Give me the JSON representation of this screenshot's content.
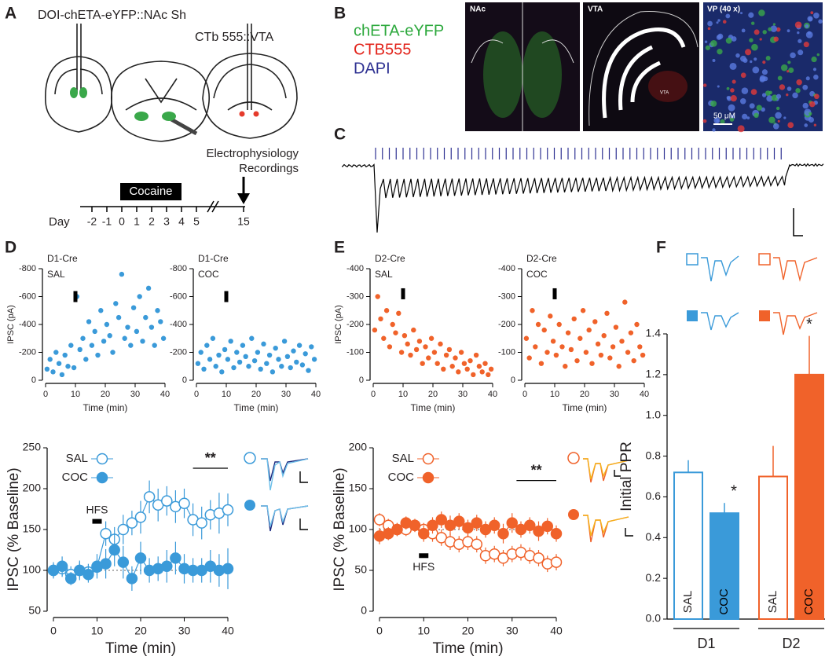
{
  "panel_labels": [
    "A",
    "B",
    "C",
    "D",
    "E",
    "F"
  ],
  "panel_a": {
    "injection_1": "DOI-chETA-eYFP::NAc Sh",
    "injection_2": "CTb 555::VTA",
    "recording": [
      "Electrophysiology",
      "Recordings"
    ],
    "treatment": "Cocaine",
    "day_label": "Day",
    "days": [
      -2,
      -1,
      0,
      1,
      2,
      3,
      4,
      5,
      15
    ]
  },
  "panel_b": {
    "legend": [
      "chETA-eYFP",
      "CTB555",
      "DAPI"
    ],
    "images": [
      "NAc",
      "VTA",
      "VP (40 x)"
    ],
    "scale_bar": "50 μM",
    "region_label": "VTA"
  },
  "chart_data": [
    {
      "type": "scatter",
      "title": "D1-Cre",
      "subtitle": "SAL",
      "ylabel": "IPSC (pA)",
      "xlabel": "Time (min)",
      "color": "#3a9ad9",
      "xlim": [
        0,
        40
      ],
      "xticks": [
        0,
        10,
        20,
        30,
        40
      ],
      "ylim": [
        0,
        -800
      ],
      "yticks": [
        0,
        -200,
        -400,
        -600,
        -800
      ],
      "stim_marker": {
        "x": 10,
        "y": -600
      },
      "x": [
        0.5,
        1.5,
        2.5,
        3.5,
        4.5,
        5.5,
        6.5,
        7.5,
        8.5,
        9.5,
        10.5,
        11.5,
        12.5,
        13.5,
        14.5,
        15.5,
        16.5,
        17.5,
        18.5,
        19.5,
        20.5,
        21.5,
        22.5,
        23.5,
        24.5,
        25.5,
        26.5,
        27.5,
        28.5,
        29.5,
        30.5,
        31.5,
        32.5,
        33.5,
        34.5,
        35.5,
        36.5,
        37.5,
        38.5,
        39.5
      ],
      "values": [
        -80,
        -150,
        -60,
        -200,
        -120,
        -40,
        -180,
        -100,
        -250,
        -90,
        -600,
        -220,
        -300,
        -150,
        -420,
        -250,
        -350,
        -180,
        -500,
        -280,
        -400,
        -320,
        -200,
        -550,
        -450,
        -760,
        -300,
        -380,
        -250,
        -520,
        -350,
        -600,
        -280,
        -450,
        -660,
        -380,
        -250,
        -500,
        -420,
        -300
      ]
    },
    {
      "type": "scatter",
      "title": "D1-Cre",
      "subtitle": "COC",
      "xlabel": "Time (min)",
      "color": "#3a9ad9",
      "xlim": [
        0,
        40
      ],
      "xticks": [
        0,
        10,
        20,
        30,
        40
      ],
      "ylim": [
        0,
        -800
      ],
      "yticks": [
        0,
        -200,
        -400,
        -600,
        -800
      ],
      "stim_marker": {
        "x": 10,
        "y": -600
      },
      "x": [
        0.5,
        1.5,
        2.5,
        3.5,
        4.5,
        5.5,
        6.5,
        7.5,
        8.5,
        9.5,
        10.5,
        11.5,
        12.5,
        13.5,
        14.5,
        15.5,
        16.5,
        17.5,
        18.5,
        19.5,
        20.5,
        21.5,
        22.5,
        23.5,
        24.5,
        25.5,
        26.5,
        27.5,
        28.5,
        29.5,
        30.5,
        31.5,
        32.5,
        33.5,
        34.5,
        35.5,
        36.5,
        37.5,
        38.5,
        39.5
      ],
      "values": [
        -120,
        -200,
        -80,
        -250,
        -150,
        -300,
        -100,
        -180,
        -60,
        -220,
        -150,
        -280,
        -90,
        -200,
        -130,
        -250,
        -170,
        -100,
        -300,
        -140,
        -200,
        -80,
        -260,
        -120,
        -180,
        -60,
        -230,
        -150,
        -100,
        -280,
        -170,
        -90,
        -210,
        -130,
        -250,
        -110,
        -190,
        -70,
        -240,
        -150
      ]
    },
    {
      "type": "line",
      "ylabel": "IPSC (% Baseline)",
      "xlabel": "Time (min)",
      "xlim": [
        0,
        40
      ],
      "xticks": [
        0,
        10,
        20,
        30,
        40
      ],
      "ylim": [
        50,
        250
      ],
      "yticks": [
        50,
        100,
        150,
        200,
        250
      ],
      "baseline": 100,
      "x": [
        0,
        2,
        4,
        6,
        8,
        10,
        12,
        14,
        16,
        18,
        20,
        22,
        24,
        26,
        28,
        30,
        32,
        34,
        36,
        38,
        40
      ],
      "series": [
        {
          "name": "SAL",
          "color": "#3a9ad9",
          "filled": false,
          "values": [
            100,
            102,
            95,
            100,
            98,
            104,
            145,
            138,
            150,
            158,
            165,
            190,
            180,
            185,
            178,
            182,
            162,
            158,
            168,
            170,
            174
          ],
          "errors": [
            8,
            10,
            10,
            12,
            10,
            10,
            15,
            15,
            18,
            15,
            20,
            20,
            20,
            18,
            20,
            18,
            20,
            20,
            18,
            25,
            20
          ]
        },
        {
          "name": "COC",
          "color": "#3a9ad9",
          "filled": true,
          "values": [
            100,
            105,
            90,
            100,
            95,
            105,
            108,
            125,
            110,
            90,
            115,
            100,
            102,
            105,
            115,
            102,
            100,
            100,
            105,
            100,
            102
          ],
          "errors": [
            10,
            12,
            8,
            10,
            10,
            15,
            18,
            20,
            20,
            15,
            20,
            15,
            15,
            20,
            20,
            18,
            15,
            15,
            20,
            20,
            25
          ]
        }
      ],
      "hfs": {
        "label": "HFS",
        "x": 10,
        "y": 160,
        "label_side": "above"
      },
      "significance": {
        "label": "**",
        "x": [
          32,
          40
        ],
        "y": 225
      }
    },
    {
      "type": "scatter",
      "title": "D2-Cre",
      "subtitle": "SAL",
      "ylabel": "IPSC (pA)",
      "xlabel": "Time (min)",
      "color": "#f0622a",
      "xlim": [
        0,
        40
      ],
      "xticks": [
        0,
        10,
        20,
        30,
        40
      ],
      "ylim": [
        0,
        -400
      ],
      "yticks": [
        0,
        -100,
        -200,
        -300,
        -400
      ],
      "stim_marker": {
        "x": 10,
        "y": -310
      },
      "x": [
        0.5,
        1.5,
        2.5,
        3.5,
        4.5,
        5.5,
        6.5,
        7.5,
        8.5,
        9.5,
        10.5,
        11.5,
        12.5,
        13.5,
        14.5,
        15.5,
        16.5,
        17.5,
        18.5,
        19.5,
        20.5,
        21.5,
        22.5,
        23.5,
        24.5,
        25.5,
        26.5,
        27.5,
        28.5,
        29.5,
        30.5,
        31.5,
        32.5,
        33.5,
        34.5,
        35.5,
        36.5,
        37.5,
        38.5,
        39.5
      ],
      "values": [
        -180,
        -300,
        -220,
        -150,
        -250,
        -120,
        -200,
        -170,
        -240,
        -100,
        -160,
        -130,
        -90,
        -180,
        -110,
        -140,
        -60,
        -120,
        -80,
        -150,
        -100,
        -60,
        -130,
        -40,
        -90,
        -110,
        -50,
        -80,
        -30,
        -100,
        -60,
        -40,
        -70,
        -20,
        -90,
        -50,
        -30,
        -60,
        -20,
        -40
      ]
    },
    {
      "type": "scatter",
      "title": "D2-Cre",
      "subtitle": "COC",
      "xlabel": "Time (min)",
      "color": "#f0622a",
      "xlim": [
        0,
        40
      ],
      "xticks": [
        0,
        10,
        20,
        30,
        40
      ],
      "ylim": [
        0,
        -400
      ],
      "yticks": [
        0,
        -100,
        -200,
        -300,
        -400
      ],
      "stim_marker": {
        "x": 10,
        "y": -310
      },
      "x": [
        0.5,
        1.5,
        2.5,
        3.5,
        4.5,
        5.5,
        6.5,
        7.5,
        8.5,
        9.5,
        10.5,
        11.5,
        12.5,
        13.5,
        14.5,
        15.5,
        16.5,
        17.5,
        18.5,
        19.5,
        20.5,
        21.5,
        22.5,
        23.5,
        24.5,
        25.5,
        26.5,
        27.5,
        28.5,
        29.5,
        30.5,
        31.5,
        32.5,
        33.5,
        34.5,
        35.5,
        36.5,
        37.5,
        38.5,
        39.5
      ],
      "values": [
        -150,
        -80,
        -250,
        -120,
        -200,
        -60,
        -180,
        -100,
        -230,
        -140,
        -90,
        -200,
        -120,
        -50,
        -170,
        -110,
        -220,
        -70,
        -150,
        -250,
        -100,
        -180,
        -60,
        -210,
        -130,
        -90,
        -160,
        -240,
        -80,
        -120,
        -190,
        -50,
        -140,
        -280,
        -100,
        -170,
        -70,
        -200,
        -120,
        -90
      ]
    },
    {
      "type": "line",
      "ylabel": "IPSC (% Baseline)",
      "xlabel": "Time (min)",
      "xlim": [
        0,
        40
      ],
      "xticks": [
        0,
        10,
        20,
        30,
        40
      ],
      "ylim": [
        0,
        200
      ],
      "yticks": [
        0,
        50,
        100,
        150,
        200
      ],
      "baseline": 100,
      "x": [
        0,
        2,
        4,
        6,
        8,
        10,
        12,
        14,
        16,
        18,
        20,
        22,
        24,
        26,
        28,
        30,
        32,
        34,
        36,
        38,
        40
      ],
      "series": [
        {
          "name": "SAL",
          "color": "#f0622a",
          "filled": false,
          "values": [
            112,
            105,
            100,
            100,
            105,
            100,
            95,
            90,
            85,
            82,
            85,
            82,
            68,
            70,
            65,
            70,
            72,
            68,
            65,
            58,
            60
          ],
          "errors": [
            8,
            8,
            8,
            8,
            8,
            8,
            10,
            10,
            10,
            10,
            10,
            10,
            10,
            10,
            10,
            10,
            10,
            10,
            10,
            10,
            10
          ]
        },
        {
          "name": "COC",
          "color": "#f0622a",
          "filled": true,
          "values": [
            92,
            95,
            100,
            108,
            105,
            95,
            105,
            112,
            105,
            110,
            102,
            108,
            100,
            105,
            95,
            108,
            100,
            105,
            98,
            104,
            95
          ],
          "errors": [
            10,
            8,
            8,
            8,
            8,
            10,
            10,
            10,
            12,
            10,
            10,
            10,
            10,
            10,
            12,
            12,
            10,
            10,
            12,
            10,
            10
          ]
        }
      ],
      "hfs": {
        "label": "HFS",
        "x": 10,
        "y": 68,
        "label_side": "below"
      },
      "significance": {
        "label": "**",
        "x": [
          31,
          40
        ],
        "y": 160
      }
    },
    {
      "type": "bar",
      "ylabel": "Initial PPR",
      "categories": [
        "SAL",
        "COC",
        "SAL",
        "COC"
      ],
      "groups": [
        "D1",
        "D2"
      ],
      "values": [
        0.72,
        0.52,
        0.7,
        1.2
      ],
      "errors": [
        0.06,
        0.05,
        0.15,
        0.19
      ],
      "colors": [
        "#3a9ad9",
        "#3a9ad9",
        "#f0622a",
        "#f0622a"
      ],
      "filled": [
        false,
        true,
        false,
        true
      ],
      "ylim": [
        0,
        1.4
      ],
      "yticks": [
        {
          "value": 0,
          "label": "0.0"
        },
        0.2,
        0.4,
        0.6,
        0.8,
        {
          "value": 1,
          "label": "1.0"
        },
        1.2,
        1.4
      ],
      "significance": [
        "",
        "*",
        "",
        "*"
      ]
    }
  ]
}
